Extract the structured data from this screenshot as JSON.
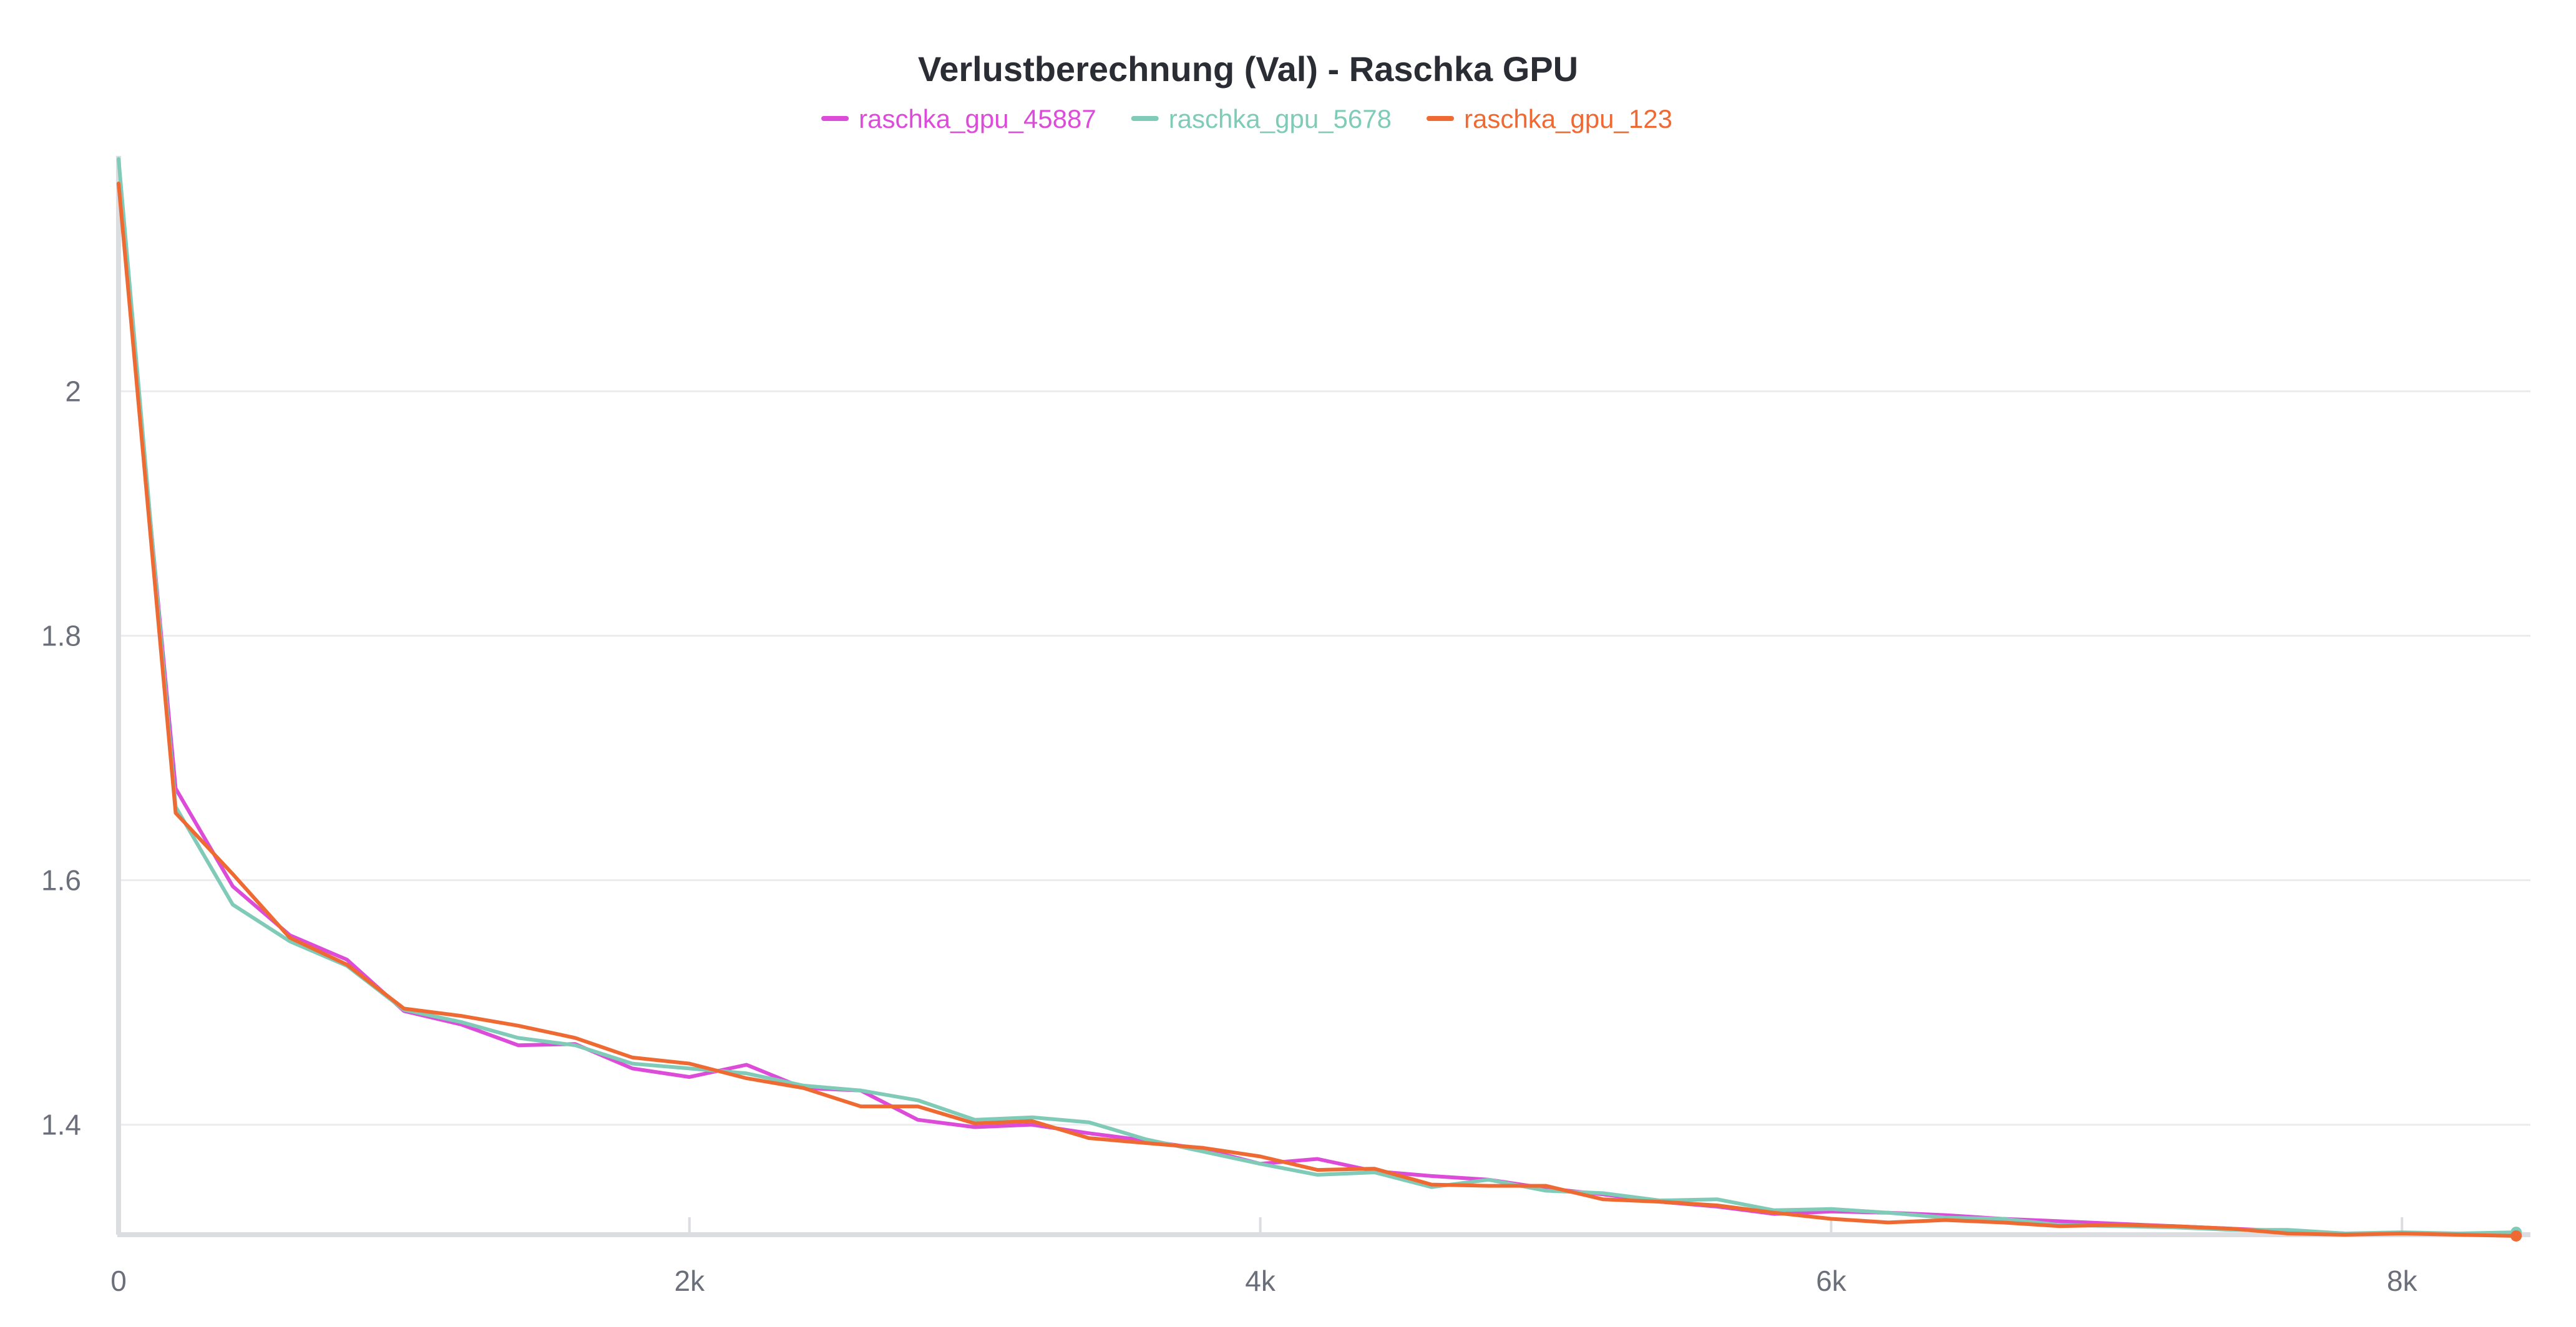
{
  "chart_data": {
    "type": "line",
    "title": "Verlustberechnung (Val) - Raschka GPU",
    "xlabel": "",
    "ylabel": "",
    "xlim": [
      0,
      8450
    ],
    "ylim": [
      1.31,
      2.19
    ],
    "x_ticks": [
      {
        "value": 0,
        "label": "0"
      },
      {
        "value": 2000,
        "label": "2k"
      },
      {
        "value": 4000,
        "label": "4k"
      },
      {
        "value": 6000,
        "label": "6k"
      },
      {
        "value": 8000,
        "label": "8k"
      }
    ],
    "y_ticks": [
      {
        "value": 1.4,
        "label": "1.4"
      },
      {
        "value": 1.6,
        "label": "1.6"
      },
      {
        "value": 1.8,
        "label": "1.8"
      },
      {
        "value": 2.0,
        "label": "2"
      }
    ],
    "grid": true,
    "legend": "top-center",
    "x": [
      0,
      200,
      400,
      600,
      800,
      1000,
      1200,
      1400,
      1600,
      1800,
      2000,
      2200,
      2400,
      2600,
      2800,
      3000,
      3200,
      3400,
      3600,
      3800,
      4000,
      4200,
      4400,
      4600,
      4800,
      5000,
      5200,
      5400,
      5600,
      5800,
      6000,
      6200,
      6400,
      6600,
      6800,
      7000,
      7200,
      7400,
      7600,
      7800,
      8000,
      8200,
      8400
    ],
    "series": [
      {
        "name": "raschka_gpu_45887",
        "color": "#dd4bd9",
        "values": [
          2.17,
          1.675,
          1.595,
          1.555,
          1.535,
          1.493,
          1.482,
          1.465,
          1.466,
          1.446,
          1.439,
          1.449,
          1.43,
          1.428,
          1.404,
          1.398,
          1.4,
          1.393,
          1.387,
          1.38,
          1.368,
          1.372,
          1.362,
          1.358,
          1.355,
          1.348,
          1.343,
          1.337,
          1.333,
          1.327,
          1.329,
          1.328,
          1.326,
          1.323,
          1.321,
          1.319,
          1.317,
          1.315,
          1.313,
          1.311,
          1.311,
          1.311,
          1.31
        ]
      },
      {
        "name": "raschka_gpu_5678",
        "color": "#7fcbb8",
        "values": [
          2.19,
          1.66,
          1.58,
          1.55,
          1.53,
          1.494,
          1.484,
          1.471,
          1.465,
          1.45,
          1.446,
          1.442,
          1.432,
          1.428,
          1.42,
          1.404,
          1.406,
          1.402,
          1.388,
          1.378,
          1.368,
          1.359,
          1.361,
          1.349,
          1.355,
          1.346,
          1.344,
          1.338,
          1.339,
          1.33,
          1.331,
          1.328,
          1.324,
          1.323,
          1.318,
          1.317,
          1.316,
          1.314,
          1.314,
          1.311,
          1.312,
          1.311,
          1.312
        ]
      },
      {
        "name": "raschka_gpu_123",
        "color": "#ef6a32",
        "values": [
          2.17,
          1.655,
          1.605,
          1.553,
          1.531,
          1.495,
          1.489,
          1.481,
          1.471,
          1.455,
          1.45,
          1.438,
          1.43,
          1.415,
          1.415,
          1.401,
          1.403,
          1.389,
          1.385,
          1.381,
          1.374,
          1.363,
          1.364,
          1.351,
          1.35,
          1.35,
          1.339,
          1.337,
          1.334,
          1.328,
          1.323,
          1.32,
          1.322,
          1.32,
          1.317,
          1.318,
          1.317,
          1.315,
          1.311,
          1.31,
          1.311,
          1.31,
          1.309
        ]
      }
    ]
  }
}
